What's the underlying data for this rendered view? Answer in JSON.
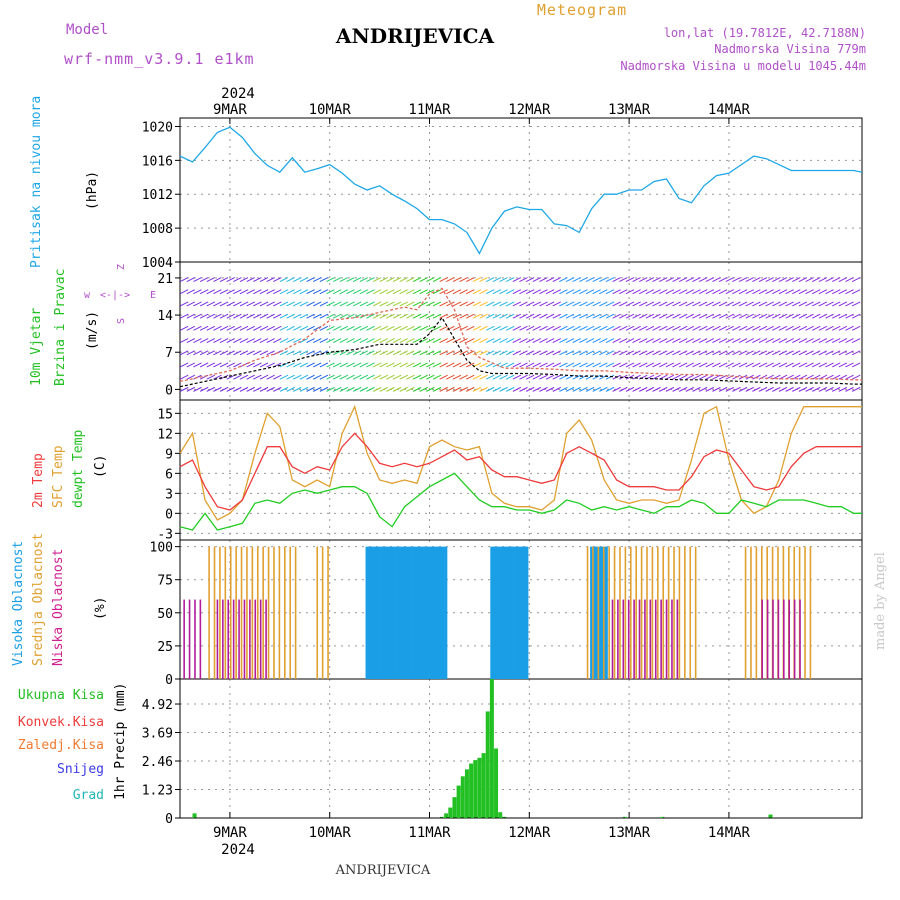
{
  "header": {
    "model_label": "Model",
    "model_name": "wrf-nmm_v3.9.1 e1km",
    "station": "ANDRIJEVICA",
    "meteogram_label": "Meteogram",
    "lonlat": "lon,lat (19.7812E, 42.7188N)",
    "altitude": "Nadmorska Visina 779m",
    "model_altitude": "Nadmorska Visina u modelu 1045.44m",
    "year": "2024",
    "footer_station": "ANDRIJEVICA",
    "watermark": "made by Angel"
  },
  "colors": {
    "pressure": "#1ea7e6",
    "temp2m": "#ee3b3b",
    "sfc": "#e0a030",
    "dewpt": "#22cc22",
    "high_cloud": "#1a9ee6",
    "mid_cloud": "#e0a030",
    "low_cloud": "#b01c9a",
    "precip": "#22c022"
  },
  "days": [
    "9MAR",
    "10MAR",
    "11MAR",
    "12MAR",
    "13MAR",
    "14MAR"
  ],
  "chart_data": [
    {
      "type": "line",
      "panel": "pressure",
      "label": "Pritisak na nivou mora",
      "unit": "(hPa)",
      "x_unit": "hours",
      "ylim": [
        1004,
        1021
      ],
      "yticks": [
        1004,
        1008,
        1012,
        1016,
        1020
      ],
      "series": [
        {
          "name": "Pritisak na nivou mora",
          "x": [
            0,
            3,
            6,
            9,
            12,
            15,
            18,
            21,
            24,
            27,
            30,
            33,
            36,
            39,
            42,
            45,
            48,
            51,
            54,
            57,
            60,
            63,
            66,
            69,
            72,
            75,
            78,
            81,
            84,
            87,
            90,
            93,
            96,
            99,
            102,
            105,
            108,
            111,
            114,
            117,
            120,
            123,
            126,
            129,
            132,
            135,
            138,
            141,
            144,
            147,
            150,
            153,
            156,
            159,
            162,
            164
          ],
          "values": [
            1016.5,
            1015.8,
            1017.5,
            1019.3,
            1019.9,
            1018.7,
            1016.8,
            1015.4,
            1014.6,
            1016.3,
            1014.6,
            1015.0,
            1015.5,
            1014.5,
            1013.2,
            1012.5,
            1013.0,
            1012.0,
            1011.2,
            1010.3,
            1009.0,
            1009.0,
            1008.5,
            1007.5,
            1005.0,
            1008.0,
            1010.0,
            1010.5,
            1010.2,
            1010.2,
            1008.5,
            1008.3,
            1007.5,
            1010.3,
            1012.0,
            1012.0,
            1012.5,
            1012.5,
            1013.5,
            1013.8,
            1011.5,
            1011.0,
            1013.0,
            1014.2,
            1014.5,
            1015.5,
            1016.5,
            1016.2,
            1015.5,
            1014.8,
            1014.8,
            1014.8,
            1014.8,
            1014.8,
            1014.8,
            1014.6
          ]
        }
      ]
    },
    {
      "type": "line",
      "panel": "wind",
      "label": "10m Vjetar Brzina i Pravac",
      "unit": "(m/s)",
      "x_unit": "hours",
      "ylim": [
        -2,
        24
      ],
      "yticks": [
        0,
        7,
        14,
        21
      ],
      "compass_labels": [
        "Z",
        "w",
        "E",
        "S"
      ],
      "series": [
        {
          "name": "mean",
          "x": [
            0,
            6,
            12,
            18,
            24,
            30,
            36,
            42,
            48,
            54,
            57,
            60,
            63,
            66,
            69,
            72,
            75,
            78,
            84,
            90,
            96,
            102,
            108,
            114,
            120,
            126,
            132,
            138,
            144,
            150,
            156,
            162,
            164
          ],
          "values": [
            0.5,
            1.5,
            2.5,
            3.5,
            4.5,
            6.0,
            7.0,
            7.5,
            8.5,
            8.5,
            8.5,
            10.5,
            13.5,
            9.5,
            5.5,
            3.5,
            3.0,
            3.0,
            3.0,
            2.8,
            2.5,
            2.5,
            2.2,
            2.0,
            1.8,
            1.8,
            1.6,
            1.4,
            1.2,
            1.2,
            1.2,
            1.0,
            1.0
          ]
        },
        {
          "name": "gust",
          "x": [
            0,
            6,
            12,
            18,
            24,
            30,
            36,
            42,
            48,
            54,
            57,
            60,
            63,
            66,
            69,
            72,
            75,
            78,
            84,
            90,
            96,
            102,
            108,
            114,
            120,
            126,
            132,
            138,
            144,
            150,
            156,
            162,
            164
          ],
          "values": [
            1.5,
            2.5,
            3.5,
            5.5,
            7.0,
            9.5,
            13.0,
            13.5,
            14.5,
            15.5,
            15.0,
            18.0,
            19.0,
            15.0,
            8.0,
            6.0,
            5.0,
            4.0,
            4.0,
            3.8,
            3.5,
            3.5,
            3.2,
            3.0,
            2.8,
            2.8,
            2.5,
            2.2,
            2.0,
            2.0,
            2.0,
            1.8,
            1.8
          ]
        }
      ]
    },
    {
      "type": "line",
      "panel": "temperature",
      "label": "2m Temp / SFC Temp / dewpt Temp",
      "unit": "(C)",
      "x_unit": "hours",
      "ylim": [
        -4,
        17
      ],
      "yticks": [
        -3,
        0,
        3,
        6,
        9,
        12,
        15
      ],
      "series": [
        {
          "name": "2m Temp",
          "x": [
            0,
            3,
            6,
            9,
            12,
            15,
            18,
            21,
            24,
            27,
            30,
            33,
            36,
            39,
            42,
            45,
            48,
            51,
            54,
            57,
            60,
            63,
            66,
            69,
            72,
            75,
            78,
            81,
            84,
            87,
            90,
            93,
            96,
            99,
            102,
            105,
            108,
            111,
            114,
            117,
            120,
            123,
            126,
            129,
            132,
            135,
            138,
            141,
            144,
            147,
            150,
            153,
            156,
            159,
            162,
            164
          ],
          "values": [
            7,
            8,
            4,
            1,
            0.5,
            2,
            6,
            10,
            10,
            7,
            6,
            7,
            6.5,
            10,
            12,
            10,
            7.5,
            7,
            7.5,
            7,
            7.5,
            8.5,
            9.5,
            8,
            8.5,
            6.5,
            5.5,
            5.5,
            5,
            4.5,
            5,
            9,
            10,
            9,
            8,
            5,
            4,
            4,
            4,
            3.5,
            3.5,
            5.5,
            8.5,
            9.5,
            9,
            6.5,
            4,
            3.5,
            4,
            7,
            9,
            10,
            10,
            10,
            10,
            10
          ]
        },
        {
          "name": "SFC Temp",
          "x": [
            0,
            3,
            6,
            9,
            12,
            15,
            18,
            21,
            24,
            27,
            30,
            33,
            36,
            39,
            42,
            45,
            48,
            51,
            54,
            57,
            60,
            63,
            66,
            69,
            72,
            75,
            78,
            81,
            84,
            87,
            90,
            93,
            96,
            99,
            102,
            105,
            108,
            111,
            114,
            117,
            120,
            123,
            126,
            129,
            132,
            135,
            138,
            141,
            144,
            147,
            150,
            153,
            156,
            159,
            162,
            164
          ],
          "values": [
            9,
            12,
            2,
            -1,
            0,
            2,
            9,
            15,
            13,
            5,
            4,
            5,
            4,
            12,
            16,
            9,
            5,
            4.5,
            5,
            4.5,
            10,
            11,
            10,
            9.5,
            10,
            3,
            1.5,
            1,
            1,
            0.5,
            2,
            12,
            14,
            11,
            5,
            2,
            1.5,
            2,
            2,
            1.5,
            2,
            8,
            15,
            16,
            8,
            2,
            0,
            1,
            5,
            12,
            16,
            16,
            16,
            16,
            16,
            16
          ]
        },
        {
          "name": "dewpt Temp",
          "x": [
            0,
            3,
            6,
            9,
            12,
            15,
            18,
            21,
            24,
            27,
            30,
            33,
            36,
            39,
            42,
            45,
            48,
            51,
            54,
            57,
            60,
            63,
            66,
            69,
            72,
            75,
            78,
            81,
            84,
            87,
            90,
            93,
            96,
            99,
            102,
            105,
            108,
            111,
            114,
            117,
            120,
            123,
            126,
            129,
            132,
            135,
            138,
            141,
            144,
            147,
            150,
            153,
            156,
            159,
            162,
            164
          ],
          "values": [
            -2,
            -2.5,
            0,
            -2.5,
            -2,
            -1.5,
            1.5,
            2,
            1.5,
            3,
            3.5,
            3,
            3.5,
            4,
            4,
            3,
            -0.5,
            -2,
            1,
            2.5,
            4,
            5,
            6,
            4,
            2,
            1,
            1,
            0.5,
            0.5,
            0,
            0.5,
            2,
            1.5,
            0.5,
            1,
            0.5,
            1,
            0.5,
            0,
            1,
            1,
            2,
            1.5,
            0,
            0,
            2,
            1.5,
            1,
            2,
            2,
            2,
            1.5,
            1,
            1,
            0,
            0
          ]
        }
      ]
    },
    {
      "type": "bar",
      "panel": "cloud",
      "label": "Visoka Oblacnost / Srednja Oblacnost / Niska Oblacnost",
      "unit": "(%)",
      "x_unit": "hours",
      "ylim": [
        0,
        105
      ],
      "yticks": [
        0,
        25,
        50,
        75,
        100
      ],
      "series": [
        {
          "name": "Visoka Oblacnost",
          "hour_ranges": [
            [
              45,
              64
            ],
            [
              75,
              84
            ],
            [
              99,
              103
            ]
          ],
          "value": 100
        },
        {
          "name": "Srednja Oblacnost",
          "hour_ranges": [
            [
              7,
              28
            ],
            [
              33,
              36
            ],
            [
              98,
              125
            ],
            [
              136,
              152
            ]
          ],
          "value": 100
        },
        {
          "name": "Niska Oblacnost",
          "hour_ranges": [
            [
              1,
              5
            ],
            [
              9,
              22
            ],
            [
              104,
              120
            ],
            [
              140,
              150
            ]
          ],
          "value": 60
        }
      ]
    },
    {
      "type": "bar",
      "panel": "precip",
      "label": "1hr Precip",
      "unit": "(mm)",
      "x_unit": "hours",
      "ylim": [
        0,
        6.0
      ],
      "yticks": [
        0,
        1.23,
        2.46,
        3.69,
        4.92
      ],
      "legend": [
        "Ukupna Kisa",
        "Konvek.Kisa",
        "Zaledj.Kisa",
        "Snijeg",
        "Grad"
      ],
      "series": [
        {
          "name": "Ukupna Kisa",
          "x": [
            3.5,
            63,
            64,
            65,
            66,
            67,
            68,
            69,
            70,
            71,
            72,
            73,
            74,
            75,
            76,
            77,
            78,
            107,
            116,
            142
          ],
          "values": [
            0.2,
            0.05,
            0.2,
            0.45,
            0.9,
            1.4,
            1.8,
            2.1,
            2.35,
            2.5,
            2.6,
            2.8,
            4.6,
            6.0,
            3.0,
            0.25,
            0.05,
            0.05,
            0.05,
            0.15
          ]
        }
      ]
    }
  ]
}
